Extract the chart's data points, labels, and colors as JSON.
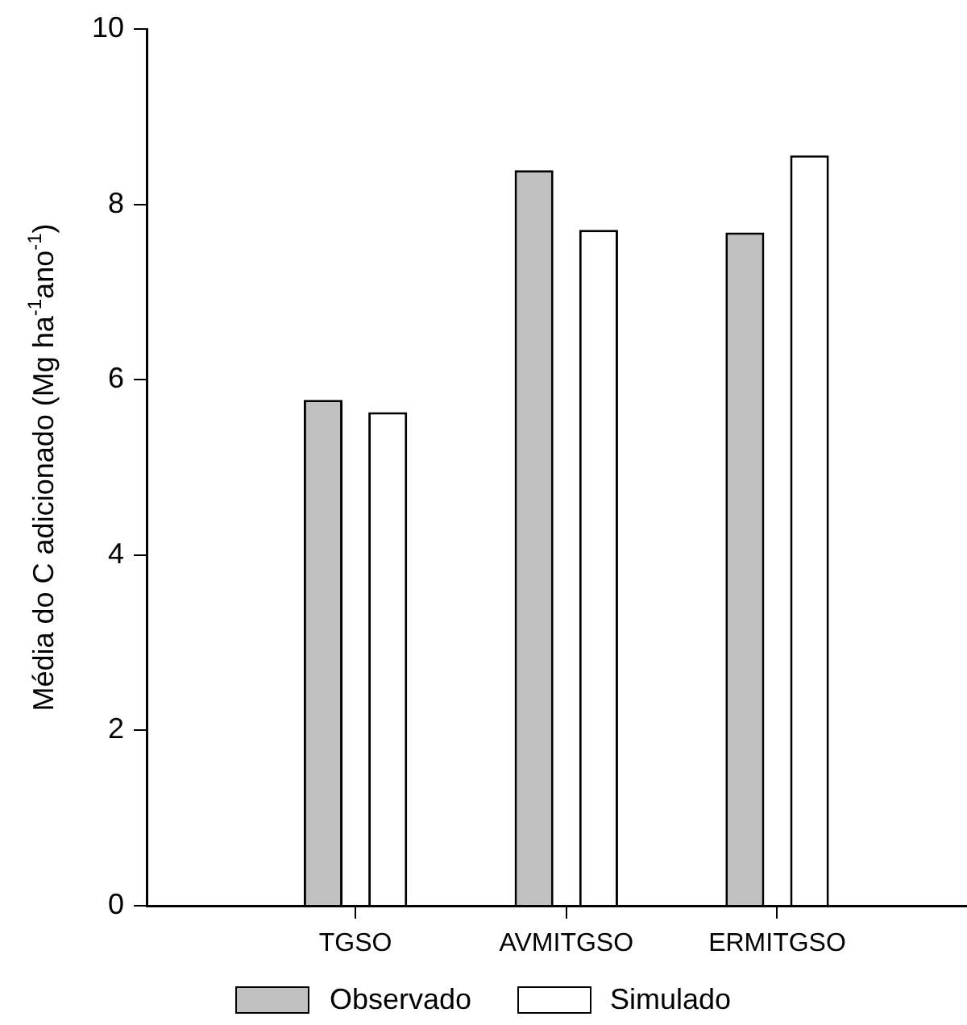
{
  "chart_data": {
    "type": "bar",
    "ylabel": "Média do C adicionado (Mg ha$^{-1}$ano$^{-1}$)",
    "categories": [
      "TGSO",
      "AVMITGSO",
      "ERMITGSO"
    ],
    "series": [
      {
        "name": "Observado",
        "color": "#c0c0c0",
        "values": [
          5.77,
          8.39,
          7.68
        ]
      },
      {
        "name": "Simulado",
        "color": "#ffffff",
        "values": [
          5.63,
          7.71,
          8.56
        ]
      }
    ],
    "ylim": [
      0,
      10
    ],
    "yticks": [
      0,
      2,
      4,
      6,
      8,
      10
    ],
    "grid": false,
    "legend": "bottom"
  }
}
